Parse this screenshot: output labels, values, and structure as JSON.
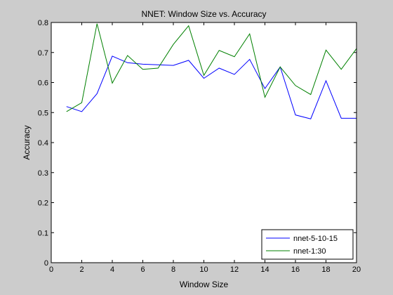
{
  "chart_data": {
    "type": "line",
    "title": "NNET: Window Size vs. Accuracy",
    "xlabel": "Window Size",
    "ylabel": "Accuracy",
    "xlim": [
      0,
      20
    ],
    "ylim": [
      0,
      0.8
    ],
    "xticks": [
      0,
      2,
      4,
      6,
      8,
      10,
      12,
      14,
      16,
      18,
      20
    ],
    "yticks": [
      0,
      0.1,
      0.2,
      0.3,
      0.4,
      0.5,
      0.6,
      0.7,
      0.8
    ],
    "xtick_labels": [
      "0",
      "2",
      "4",
      "6",
      "8",
      "10",
      "12",
      "14",
      "16",
      "18",
      "20"
    ],
    "ytick_labels": [
      "0",
      "0.1",
      "0.2",
      "0.3",
      "0.4",
      "0.5",
      "0.6",
      "0.7",
      "0.8"
    ],
    "grid": false,
    "legend_position": "bottom-right",
    "x": [
      1,
      2,
      3,
      4,
      5,
      6,
      7,
      8,
      9,
      10,
      11,
      12,
      13,
      14,
      15,
      16,
      17,
      18,
      19,
      20
    ],
    "series": [
      {
        "name": "nnet-5-10-15",
        "color": "#0000ff",
        "values": [
          0.52,
          0.503,
          0.563,
          0.688,
          0.666,
          0.661,
          0.659,
          0.657,
          0.674,
          0.614,
          0.648,
          0.627,
          0.677,
          0.58,
          0.652,
          0.492,
          0.479,
          0.606,
          0.481,
          0.481
        ]
      },
      {
        "name": "nnet-1:30",
        "color": "#008000",
        "values": [
          0.503,
          0.533,
          0.796,
          0.598,
          0.69,
          0.644,
          0.648,
          0.727,
          0.789,
          0.624,
          0.707,
          0.686,
          0.762,
          0.551,
          0.652,
          0.59,
          0.56,
          0.708,
          0.644,
          0.713
        ]
      }
    ]
  }
}
